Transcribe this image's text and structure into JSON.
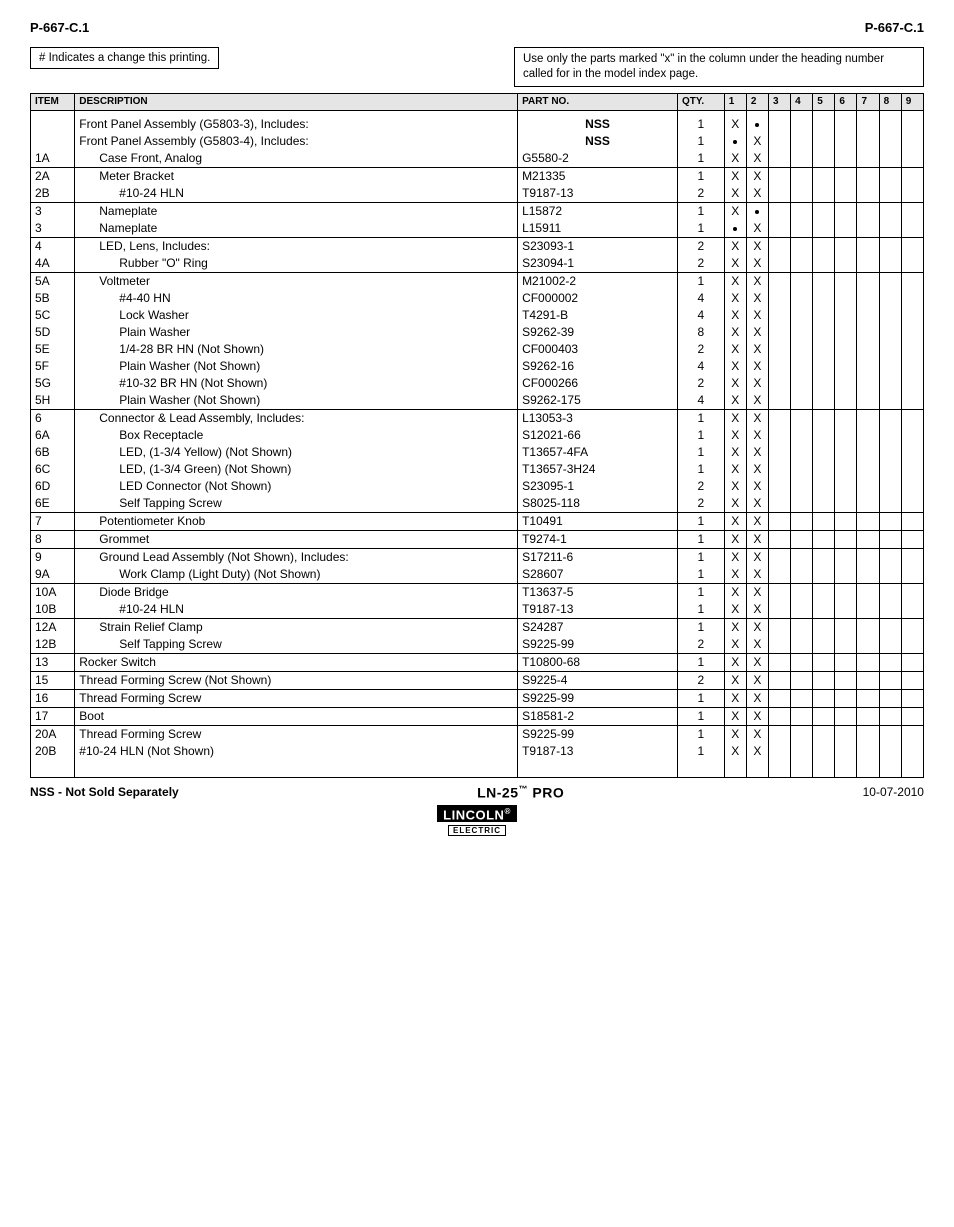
{
  "header": {
    "left_code": "P-667-C.1",
    "right_code": "P-667-C.1",
    "change_note": "# Indicates a change this printing.",
    "usage_note": "Use only the parts marked \"x\" in the column under the heading number called for in the model index page."
  },
  "table": {
    "columns": {
      "item": "ITEM",
      "description": "DESCRIPTION",
      "part_no": "PART NO.",
      "qty": "QTY.",
      "flags": [
        "1",
        "2",
        "3",
        "4",
        "5",
        "6",
        "7",
        "8",
        "9"
      ]
    },
    "header_bg": "#e5e5e5",
    "border_color": "#000000",
    "fontsize": 12,
    "rows": [
      {
        "item": "",
        "desc": "",
        "part": "",
        "qty": "",
        "flags": [
          "",
          "",
          "",
          "",
          "",
          "",
          "",
          "",
          ""
        ],
        "sep": false,
        "spacer": true
      },
      {
        "item": "",
        "desc": "Front Panel Assembly (G5803-3), Includes:",
        "part": "NSS",
        "qty": "1",
        "flags": [
          "X",
          "•",
          "",
          "",
          "",
          "",
          "",
          "",
          ""
        ],
        "sep": false,
        "bold_part": true,
        "indent": 0
      },
      {
        "item": "",
        "desc": "Front Panel Assembly (G5803-4), Includes:",
        "part": "NSS",
        "qty": "1",
        "flags": [
          "•",
          "X",
          "",
          "",
          "",
          "",
          "",
          "",
          ""
        ],
        "sep": false,
        "bold_part": true,
        "indent": 0
      },
      {
        "item": "1A",
        "desc": "Case Front, Analog",
        "part": "G5580-2",
        "qty": "1",
        "flags": [
          "X",
          "X",
          "",
          "",
          "",
          "",
          "",
          "",
          ""
        ],
        "sep": false,
        "indent": 1
      },
      {
        "item": "2A",
        "desc": "Meter Bracket",
        "part": "M21335",
        "qty": "1",
        "flags": [
          "X",
          "X",
          "",
          "",
          "",
          "",
          "",
          "",
          ""
        ],
        "sep": true,
        "indent": 1
      },
      {
        "item": "2B",
        "desc": "#10-24 HLN",
        "part": "T9187-13",
        "qty": "2",
        "flags": [
          "X",
          "X",
          "",
          "",
          "",
          "",
          "",
          "",
          ""
        ],
        "sep": false,
        "indent": 2
      },
      {
        "item": "3",
        "desc": "Nameplate",
        "part": "L15872",
        "qty": "1",
        "flags": [
          "X",
          "•",
          "",
          "",
          "",
          "",
          "",
          "",
          ""
        ],
        "sep": true,
        "indent": 1
      },
      {
        "item": "3",
        "desc": "Nameplate",
        "part": "L15911",
        "qty": "1",
        "flags": [
          "•",
          "X",
          "",
          "",
          "",
          "",
          "",
          "",
          ""
        ],
        "sep": false,
        "indent": 1
      },
      {
        "item": "4",
        "desc": "LED, Lens, Includes:",
        "part": "S23093-1",
        "qty": "2",
        "flags": [
          "X",
          "X",
          "",
          "",
          "",
          "",
          "",
          "",
          ""
        ],
        "sep": true,
        "indent": 1
      },
      {
        "item": "4A",
        "desc": "Rubber \"O\" Ring",
        "part": "S23094-1",
        "qty": "2",
        "flags": [
          "X",
          "X",
          "",
          "",
          "",
          "",
          "",
          "",
          ""
        ],
        "sep": false,
        "indent": 2
      },
      {
        "item": "5A",
        "desc": "Voltmeter",
        "part": "M21002-2",
        "qty": "1",
        "flags": [
          "X",
          "X",
          "",
          "",
          "",
          "",
          "",
          "",
          ""
        ],
        "sep": true,
        "indent": 1
      },
      {
        "item": "5B",
        "desc": "#4-40 HN",
        "part": "CF000002",
        "qty": "4",
        "flags": [
          "X",
          "X",
          "",
          "",
          "",
          "",
          "",
          "",
          ""
        ],
        "sep": false,
        "indent": 2
      },
      {
        "item": "5C",
        "desc": "Lock Washer",
        "part": "T4291-B",
        "qty": "4",
        "flags": [
          "X",
          "X",
          "",
          "",
          "",
          "",
          "",
          "",
          ""
        ],
        "sep": false,
        "indent": 2
      },
      {
        "item": "5D",
        "desc": "Plain Washer",
        "part": "S9262-39",
        "qty": "8",
        "flags": [
          "X",
          "X",
          "",
          "",
          "",
          "",
          "",
          "",
          ""
        ],
        "sep": false,
        "indent": 2
      },
      {
        "item": "5E",
        "desc": "1/4-28 BR HN (Not Shown)",
        "part": "CF000403",
        "qty": "2",
        "flags": [
          "X",
          "X",
          "",
          "",
          "",
          "",
          "",
          "",
          ""
        ],
        "sep": false,
        "indent": 2
      },
      {
        "item": "5F",
        "desc": "Plain Washer (Not Shown)",
        "part": "S9262-16",
        "qty": "4",
        "flags": [
          "X",
          "X",
          "",
          "",
          "",
          "",
          "",
          "",
          ""
        ],
        "sep": false,
        "indent": 2
      },
      {
        "item": "5G",
        "desc": "#10-32 BR HN (Not Shown)",
        "part": "CF000266",
        "qty": "2",
        "flags": [
          "X",
          "X",
          "",
          "",
          "",
          "",
          "",
          "",
          ""
        ],
        "sep": false,
        "indent": 2
      },
      {
        "item": "5H",
        "desc": "Plain Washer (Not Shown)",
        "part": "S9262-175",
        "qty": "4",
        "flags": [
          "X",
          "X",
          "",
          "",
          "",
          "",
          "",
          "",
          ""
        ],
        "sep": false,
        "indent": 2
      },
      {
        "item": "6",
        "desc": "Connector & Lead Assembly, Includes:",
        "part": "L13053-3",
        "qty": "1",
        "flags": [
          "X",
          "X",
          "",
          "",
          "",
          "",
          "",
          "",
          ""
        ],
        "sep": true,
        "indent": 1
      },
      {
        "item": "6A",
        "desc": "Box Receptacle",
        "part": "S12021-66",
        "qty": "1",
        "flags": [
          "X",
          "X",
          "",
          "",
          "",
          "",
          "",
          "",
          ""
        ],
        "sep": false,
        "indent": 2
      },
      {
        "item": "6B",
        "desc": "LED, (1-3/4 Yellow) (Not Shown)",
        "part": "T13657-4FA",
        "qty": "1",
        "flags": [
          "X",
          "X",
          "",
          "",
          "",
          "",
          "",
          "",
          ""
        ],
        "sep": false,
        "indent": 2
      },
      {
        "item": "6C",
        "desc": "LED, (1-3/4 Green) (Not Shown)",
        "part": "T13657-3H24",
        "qty": "1",
        "flags": [
          "X",
          "X",
          "",
          "",
          "",
          "",
          "",
          "",
          ""
        ],
        "sep": false,
        "indent": 2
      },
      {
        "item": "6D",
        "desc": "LED Connector (Not Shown)",
        "part": "S23095-1",
        "qty": "2",
        "flags": [
          "X",
          "X",
          "",
          "",
          "",
          "",
          "",
          "",
          ""
        ],
        "sep": false,
        "indent": 2
      },
      {
        "item": "6E",
        "desc": "Self Tapping Screw",
        "part": "S8025-118",
        "qty": "2",
        "flags": [
          "X",
          "X",
          "",
          "",
          "",
          "",
          "",
          "",
          ""
        ],
        "sep": false,
        "indent": 2
      },
      {
        "item": "7",
        "desc": "Potentiometer Knob",
        "part": "T10491",
        "qty": "1",
        "flags": [
          "X",
          "X",
          "",
          "",
          "",
          "",
          "",
          "",
          ""
        ],
        "sep": true,
        "indent": 1
      },
      {
        "item": "8",
        "desc": "Grommet",
        "part": "T9274-1",
        "qty": "1",
        "flags": [
          "X",
          "X",
          "",
          "",
          "",
          "",
          "",
          "",
          ""
        ],
        "sep": true,
        "indent": 1
      },
      {
        "item": "9",
        "desc": "Ground Lead Assembly (Not Shown), Includes:",
        "part": "S17211-6",
        "qty": "1",
        "flags": [
          "X",
          "X",
          "",
          "",
          "",
          "",
          "",
          "",
          ""
        ],
        "sep": true,
        "indent": 1
      },
      {
        "item": "9A",
        "desc": "Work Clamp (Light Duty) (Not Shown)",
        "part": "S28607",
        "qty": "1",
        "flags": [
          "X",
          "X",
          "",
          "",
          "",
          "",
          "",
          "",
          ""
        ],
        "sep": false,
        "indent": 2
      },
      {
        "item": "10A",
        "desc": "Diode Bridge",
        "part": "T13637-5",
        "qty": "1",
        "flags": [
          "X",
          "X",
          "",
          "",
          "",
          "",
          "",
          "",
          ""
        ],
        "sep": true,
        "indent": 1
      },
      {
        "item": "10B",
        "desc": "#10-24 HLN",
        "part": "T9187-13",
        "qty": "1",
        "flags": [
          "X",
          "X",
          "",
          "",
          "",
          "",
          "",
          "",
          ""
        ],
        "sep": false,
        "indent": 2
      },
      {
        "item": "12A",
        "desc": "Strain Relief Clamp",
        "part": "S24287",
        "qty": "1",
        "flags": [
          "X",
          "X",
          "",
          "",
          "",
          "",
          "",
          "",
          ""
        ],
        "sep": true,
        "indent": 1
      },
      {
        "item": "12B",
        "desc": "Self Tapping Screw",
        "part": "S9225-99",
        "qty": "2",
        "flags": [
          "X",
          "X",
          "",
          "",
          "",
          "",
          "",
          "",
          ""
        ],
        "sep": false,
        "indent": 2
      },
      {
        "item": "13",
        "desc": "Rocker Switch",
        "part": "T10800-68",
        "qty": "1",
        "flags": [
          "X",
          "X",
          "",
          "",
          "",
          "",
          "",
          "",
          ""
        ],
        "sep": true,
        "indent": 0
      },
      {
        "item": "15",
        "desc": "Thread Forming Screw (Not Shown)",
        "part": "S9225-4",
        "qty": "2",
        "flags": [
          "X",
          "X",
          "",
          "",
          "",
          "",
          "",
          "",
          ""
        ],
        "sep": true,
        "indent": 0
      },
      {
        "item": "16",
        "desc": "Thread Forming Screw",
        "part": "S9225-99",
        "qty": "1",
        "flags": [
          "X",
          "X",
          "",
          "",
          "",
          "",
          "",
          "",
          ""
        ],
        "sep": true,
        "indent": 0
      },
      {
        "item": "17",
        "desc": "Boot",
        "part": "S18581-2",
        "qty": "1",
        "flags": [
          "X",
          "X",
          "",
          "",
          "",
          "",
          "",
          "",
          ""
        ],
        "sep": true,
        "indent": 0
      },
      {
        "item": "20A",
        "desc": "Thread Forming Screw",
        "part": "S9225-99",
        "qty": "1",
        "flags": [
          "X",
          "X",
          "",
          "",
          "",
          "",
          "",
          "",
          ""
        ],
        "sep": true,
        "indent": 0
      },
      {
        "item": "20B",
        "desc": "#10-24 HLN (Not Shown)",
        "part": "T9187-13",
        "qty": "1",
        "flags": [
          "X",
          "X",
          "",
          "",
          "",
          "",
          "",
          "",
          ""
        ],
        "sep": false,
        "indent": 0
      }
    ]
  },
  "footer": {
    "left": "NSS - Not Sold Separately",
    "center": "LN-25",
    "center_tm": "™",
    "center_suffix": " PRO",
    "right": "10-07-2010",
    "logo_top": "LINCOLN",
    "logo_sub": "ELECTRIC"
  }
}
